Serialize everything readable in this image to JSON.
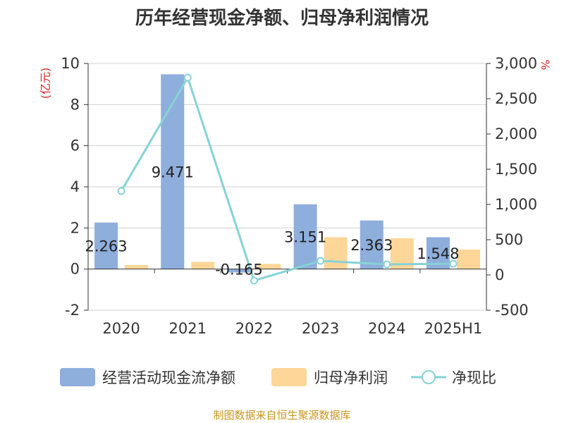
{
  "chart_data": {
    "type": "bar",
    "title": "历年经营现金净额、归母净利润情况",
    "categories": [
      "2020",
      "2021",
      "2022",
      "2023",
      "2024",
      "2025H1"
    ],
    "y_left": {
      "unit": "(亿元)",
      "ylim": [
        -2,
        10
      ],
      "ticks": [
        10,
        8,
        6,
        4,
        2,
        0,
        -2
      ],
      "tick_labels": [
        "10",
        "8",
        "6",
        "4",
        "2",
        "0",
        "-2"
      ]
    },
    "y_right": {
      "unit": "%",
      "ylim": [
        -500,
        3000
      ],
      "ticks": [
        3000,
        2500,
        2000,
        1500,
        1000,
        500,
        0,
        -500
      ],
      "tick_labels": [
        "3,000",
        "2,500",
        "2,000",
        "1,500",
        "1,000",
        "500",
        "0",
        "-500"
      ]
    },
    "series": [
      {
        "name": "经营活动现金流净额",
        "kind": "bar",
        "axis": "left",
        "color": "#8eaedc",
        "values": [
          2.263,
          9.471,
          -0.165,
          3.151,
          2.363,
          1.548
        ],
        "labels": [
          "2.263",
          "9.471",
          "-0.165",
          "3.151",
          "2.363",
          "1.548"
        ]
      },
      {
        "name": "归母净利润",
        "kind": "bar",
        "axis": "left",
        "color": "#fdd698",
        "values": [
          0.2,
          0.35,
          0.25,
          1.55,
          1.5,
          0.95
        ]
      },
      {
        "name": "净现比",
        "kind": "line",
        "axis": "right",
        "color": "#86d2d6",
        "values": [
          1190,
          2800,
          -80,
          200,
          150,
          160
        ]
      }
    ],
    "grid": true,
    "legend_position": "bottom"
  },
  "footer": {
    "source": "制图数据来自恒生聚源数据库"
  }
}
